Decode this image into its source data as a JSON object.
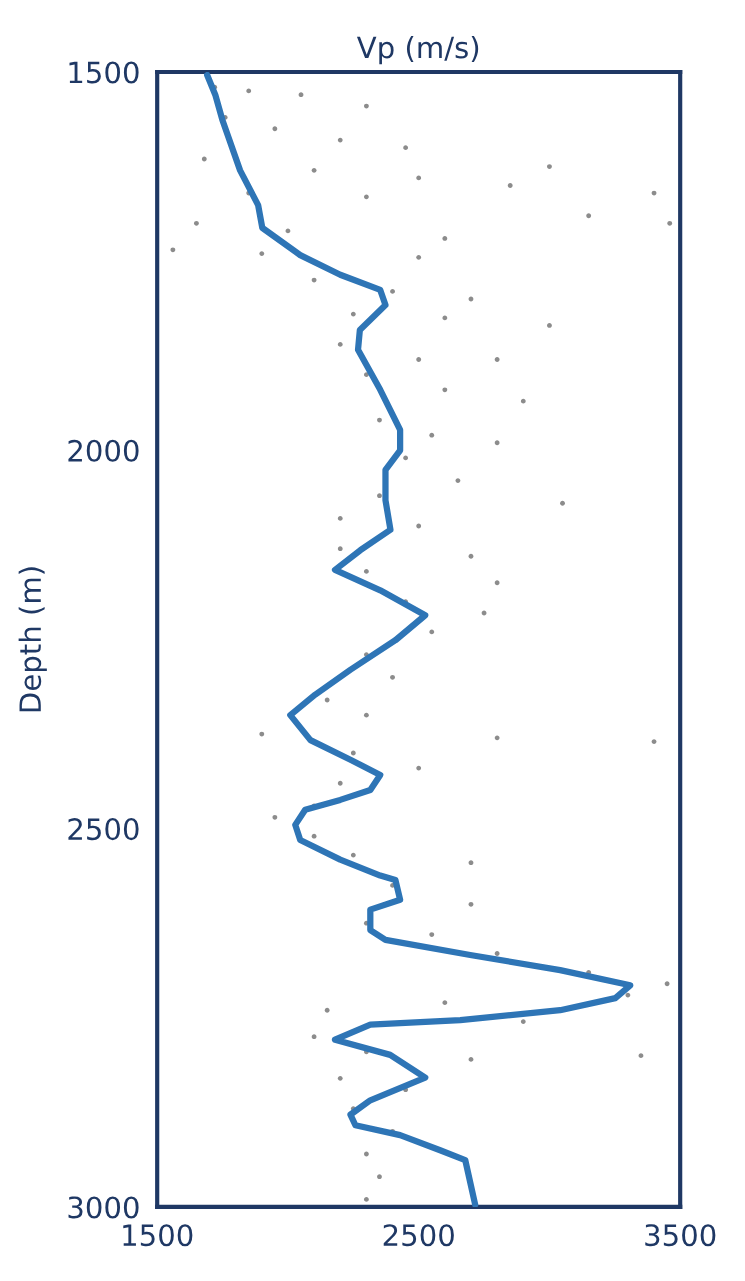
{
  "chart_data": {
    "type": "scatter",
    "xlabel": "Vp (m/s)",
    "ylabel": "Depth (m)",
    "xlim": [
      1500,
      3500
    ],
    "xticks": [
      1500,
      2500,
      3500
    ],
    "ylim": [
      3000,
      1500
    ],
    "yticks": [
      1500,
      2000,
      2500,
      3000
    ],
    "grid": false,
    "legend": false,
    "series": [
      {
        "color": "#8c8c8c",
        "marker": "circle",
        "x": [
          1720,
          1850,
          2050,
          2300,
          1760,
          1950,
          2200,
          2450,
          3000,
          1680,
          2100,
          2500,
          2850,
          3400,
          1850,
          2300,
          3150,
          3460,
          1650,
          2000,
          2600,
          1560,
          1900,
          2500,
          2100,
          2400,
          2700,
          2250,
          2600,
          3000,
          2200,
          2500,
          2800,
          2300,
          2600,
          2900,
          2350,
          2550,
          2800,
          2450,
          2650,
          2350,
          3050,
          2200,
          2500,
          2200,
          2700,
          2300,
          2800,
          2450,
          2750,
          2550,
          2300,
          2400,
          2150,
          2300,
          1900,
          2800,
          3400,
          2250,
          2500,
          2200,
          2100,
          1950,
          2100,
          2250,
          2700,
          2400,
          2700,
          2300,
          2550,
          2800,
          3150,
          3450,
          3300,
          2600,
          2150,
          2900,
          2100,
          2300,
          3350,
          2700,
          2200,
          2450,
          2250,
          2400,
          2300,
          2350,
          2300
        ],
        "values": [
          1520,
          1525,
          1530,
          1545,
          1560,
          1575,
          1590,
          1600,
          1625,
          1615,
          1630,
          1640,
          1650,
          1660,
          1660,
          1665,
          1690,
          1700,
          1700,
          1710,
          1720,
          1735,
          1740,
          1745,
          1775,
          1790,
          1800,
          1820,
          1825,
          1835,
          1860,
          1880,
          1880,
          1900,
          1920,
          1935,
          1960,
          1980,
          1990,
          2010,
          2040,
          2060,
          2070,
          2090,
          2100,
          2130,
          2140,
          2160,
          2175,
          2200,
          2215,
          2240,
          2270,
          2300,
          2330,
          2350,
          2375,
          2380,
          2385,
          2400,
          2420,
          2440,
          2470,
          2485,
          2510,
          2535,
          2545,
          2575,
          2600,
          2625,
          2640,
          2665,
          2690,
          2705,
          2720,
          2730,
          2740,
          2755,
          2775,
          2795,
          2800,
          2805,
          2830,
          2845,
          2870,
          2900,
          2930,
          2960,
          2990
        ]
      },
      {
        "type": "line",
        "color": "#2e75b6",
        "marker": "none",
        "line_style": "solid",
        "x": [
          1691,
          1722,
          1749,
          1817,
          1886,
          1902,
          2047,
          2200,
          2353,
          2373,
          2275,
          2268,
          2353,
          2429,
          2429,
          2373,
          2373,
          2392,
          2277,
          2180,
          2353,
          2525,
          2411,
          2239,
          2104,
          2009,
          2086,
          2239,
          2353,
          2315,
          2200,
          2066,
          2028,
          2047,
          2200,
          2353,
          2411,
          2429,
          2315,
          2315,
          2373,
          2697,
          3041,
          3309,
          3252,
          3041,
          2659,
          2315,
          2180,
          2391,
          2525,
          2315,
          2239,
          2258,
          2429,
          2582,
          2678,
          2716
        ],
        "values": [
          1504,
          1530,
          1563,
          1630,
          1676,
          1706,
          1742,
          1768,
          1788,
          1808,
          1841,
          1867,
          1920,
          1973,
          2000,
          2026,
          2066,
          2105,
          2132,
          2158,
          2185,
          2218,
          2251,
          2290,
          2323,
          2350,
          2383,
          2409,
          2429,
          2449,
          2462,
          2475,
          2495,
          2515,
          2541,
          2562,
          2568,
          2594,
          2607,
          2634,
          2647,
          2667,
          2687,
          2707,
          2724,
          2740,
          2753,
          2759,
          2779,
          2799,
          2829,
          2859,
          2878,
          2892,
          2905,
          2925,
          2938,
          2997
        ]
      }
    ]
  }
}
